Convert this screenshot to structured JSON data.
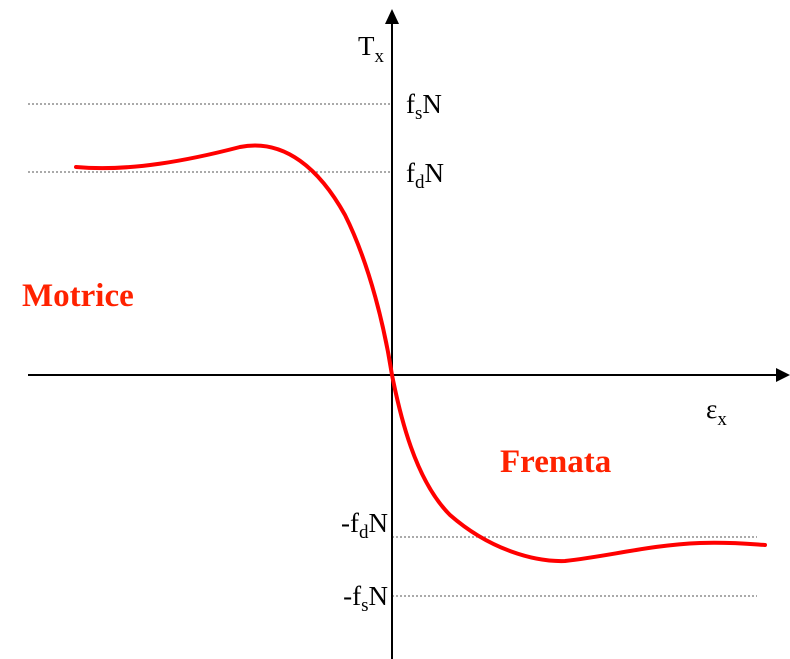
{
  "axes": {
    "y_label": {
      "main": "T",
      "sub": "x"
    },
    "x_label": {
      "main": "ε",
      "sub": "x"
    }
  },
  "levels": {
    "fs_pos": {
      "pre": "f",
      "sub": "s",
      "post": "N"
    },
    "fd_pos": {
      "pre": "f",
      "sub": "d",
      "post": "N"
    },
    "fd_neg": {
      "pre": "-f",
      "sub": "d",
      "post": "N"
    },
    "fs_neg": {
      "pre": "-f",
      "sub": "s",
      "post": "N"
    }
  },
  "regions": {
    "left": "Motrice",
    "right": "Frenata"
  },
  "colors": {
    "curve": "#ff0000",
    "region_text": "#ff2200",
    "axis": "#000000",
    "level_line": "#666666"
  }
}
